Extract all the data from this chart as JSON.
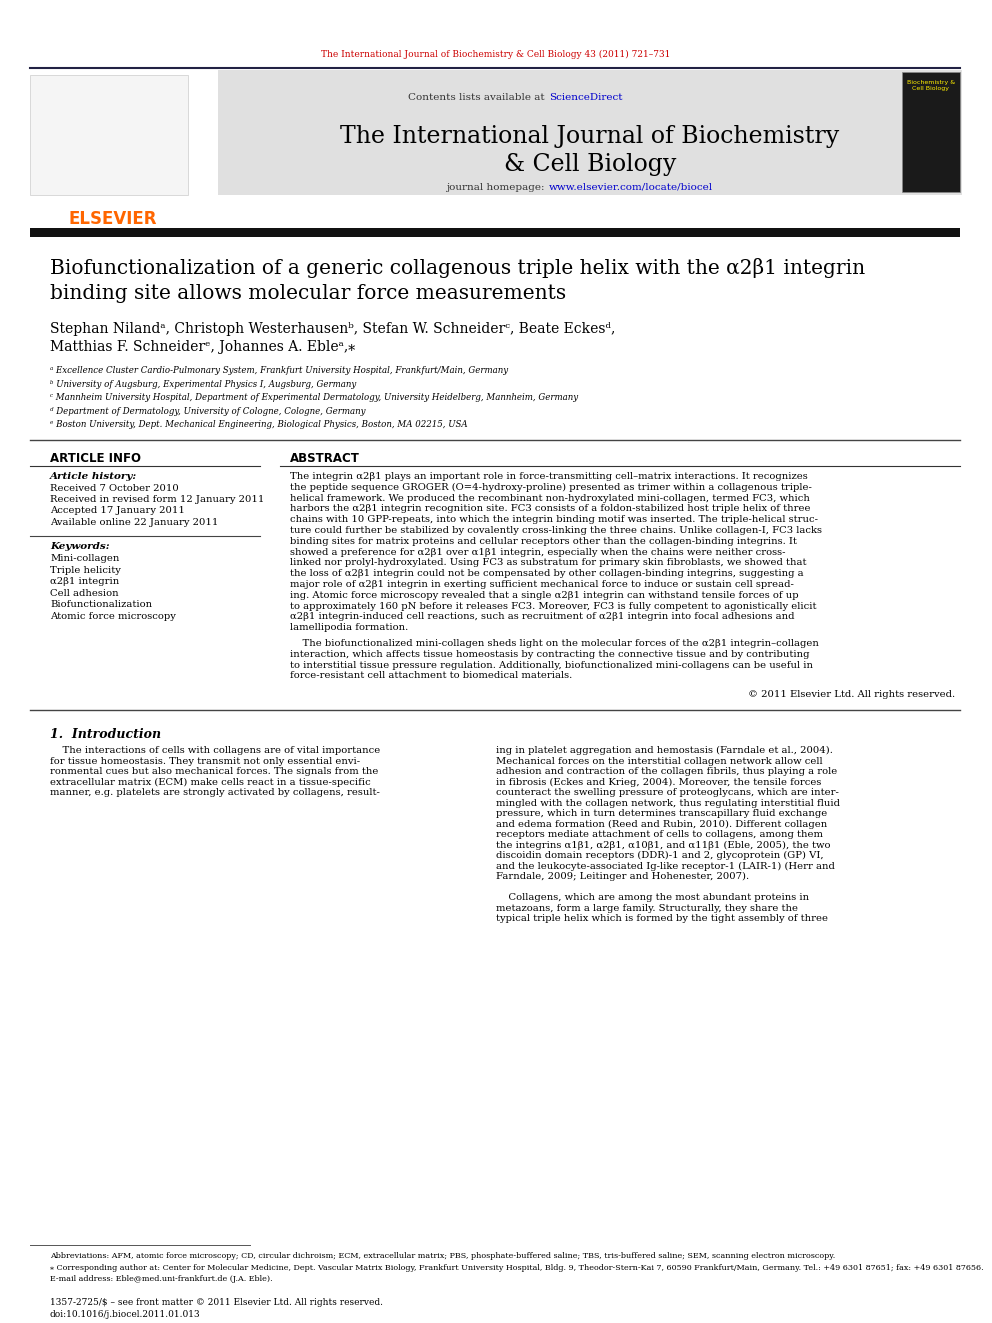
{
  "page_bg": "#ffffff",
  "header_journal_text": "The International Journal of Biochemistry & Cell Biology 43 (2011) 721–731",
  "journal_title_line1": "The International Journal of Biochemistry",
  "journal_title_line2": "& Cell Biology",
  "journal_homepage_plain": "journal homepage: ",
  "journal_homepage_link": "www.elsevier.com/locate/biocel",
  "contents_lists_plain": "Contents lists available at ",
  "contents_lists_link": "ScienceDirect",
  "article_title_line1": "Biofunctionalization of a generic collagenous triple helix with the α2β1 integrin",
  "article_title_line2": "binding site allows molecular force measurements",
  "authors": "Stephan Nilandᵃ, Christoph Westerhausenᵇ, Stefan W. Schneiderᶜ, Beate Eckesᵈ,",
  "authors2": "Matthias F. Schneiderᵉ, Johannes A. Ebleᵃ,⁎",
  "affil_a": "ᵃ Excellence Cluster Cardio-Pulmonary System, Frankfurt University Hospital, Frankfurt/Main, Germany",
  "affil_b": "ᵇ University of Augsburg, Experimental Physics I, Augsburg, Germany",
  "affil_c": "ᶜ Mannheim University Hospital, Department of Experimental Dermatology, University Heidelberg, Mannheim, Germany",
  "affil_d": "ᵈ Department of Dermatology, University of Cologne, Cologne, Germany",
  "affil_e": "ᵉ Boston University, Dept. Mechanical Engineering, Biological Physics, Boston, MA 02215, USA",
  "article_info_label": "ARTICLE INFO",
  "abstract_label": "ABSTRACT",
  "article_history_label": "Article history:",
  "received": "Received 7 October 2010",
  "revised": "Received in revised form 12 January 2011",
  "accepted": "Accepted 17 January 2011",
  "available": "Available online 22 January 2011",
  "keywords_label": "Keywords:",
  "keywords": [
    "Mini-collagen",
    "Triple helicity",
    "α2β1 integrin",
    "Cell adhesion",
    "Biofunctionalization",
    "Atomic force microscopy"
  ],
  "abstract_lines": [
    "The integrin α2β1 plays an important role in force-transmitting cell–matrix interactions. It recognizes",
    "the peptide sequence GROGER (O=4-hydroxy-proline) presented as trimer within a collagenous triple-",
    "helical framework. We produced the recombinant non-hydroxylated mini-collagen, termed FC3, which",
    "harbors the α2β1 integrin recognition site. FC3 consists of a foldon-stabilized host triple helix of three",
    "chains with 10 GPP-repeats, into which the integrin binding motif was inserted. The triple-helical struc-",
    "ture could further be stabilized by covalently cross-linking the three chains. Unlike collagen-I, FC3 lacks",
    "binding sites for matrix proteins and cellular receptors other than the collagen-binding integrins. It",
    "showed a preference for α2β1 over α1β1 integrin, especially when the chains were neither cross-",
    "linked nor prolyl-hydroxylated. Using FC3 as substratum for primary skin fibroblasts, we showed that",
    "the loss of α2β1 integrin could not be compensated by other collagen-binding integrins, suggesting a",
    "major role of α2β1 integrin in exerting sufficient mechanical force to induce or sustain cell spread-",
    "ing. Atomic force microscopy revealed that a single α2β1 integrin can withstand tensile forces of up",
    "to approximately 160 pN before it releases FC3. Moreover, FC3 is fully competent to agonistically elicit",
    "α2β1 integrin-induced cell reactions, such as recruitment of α2β1 integrin into focal adhesions and",
    "lamellipodia formation."
  ],
  "abstract_lines2": [
    "    The biofunctionalized mini-collagen sheds light on the molecular forces of the α2β1 integrin–collagen",
    "interaction, which affects tissue homeostasis by contracting the connective tissue and by contributing",
    "to interstitial tissue pressure regulation. Additionally, biofunctionalized mini-collagens can be useful in",
    "force-resistant cell attachment to biomedical materials."
  ],
  "copyright": "© 2011 Elsevier Ltd. All rights reserved.",
  "section1_label": "1.  Introduction",
  "intro_left": [
    "    The interactions of cells with collagens are of vital importance",
    "for tissue homeostasis. They transmit not only essential envi-",
    "ronmental cues but also mechanical forces. The signals from the",
    "extracellular matrix (ECM) make cells react in a tissue-specific",
    "manner, e.g. platelets are strongly activated by collagens, result-"
  ],
  "intro_right": [
    "ing in platelet aggregation and hemostasis (Farndale et al., 2004).",
    "Mechanical forces on the interstitial collagen network allow cell",
    "adhesion and contraction of the collagen fibrils, thus playing a role",
    "in fibrosis (Eckes and Krieg, 2004). Moreover, the tensile forces",
    "counteract the swelling pressure of proteoglycans, which are inter-",
    "mingled with the collagen network, thus regulating interstitial fluid",
    "pressure, which in turn determines transcapillary fluid exchange",
    "and edema formation (Reed and Rubin, 2010). Different collagen",
    "receptors mediate attachment of cells to collagens, among them",
    "the integrins α1β1, α2β1, α10β1, and α11β1 (Eble, 2005), the two",
    "discoidin domain receptors (DDR)-1 and 2, glycoprotein (GP) VI,",
    "and the leukocyte-associated Ig-like receptor-1 (LAIR-1) (Herr and",
    "Farndale, 2009; Leitinger and Hohenester, 2007)."
  ],
  "intro_right2": [
    "    Collagens, which are among the most abundant proteins in",
    "metazoans, form a large family. Structurally, they share the",
    "typical triple helix which is formed by the tight assembly of three"
  ],
  "footnote_abbrev": "Abbreviations: AFM, atomic force microscopy; CD, circular dichroism; ECM, extracellular matrix; PBS, phosphate-buffered saline; TBS, tris-buffered saline; SEM, scanning electron microscopy.",
  "footnote_corresponding": "⁎ Corresponding author at: Center for Molecular Medicine, Dept. Vascular Matrix Biology, Frankfurt University Hospital, Bldg. 9, Theodor-Stern-Kai 7, 60590 Frankfurt/Main, Germany. Tel.: +49 6301 87651; fax: +49 6301 87656.",
  "footnote_email": "E-mail address: Eble@med.uni-frankfurt.de (J.A. Eble).",
  "footer_issn": "1357-2725/$ – see front matter © 2011 Elsevier Ltd. All rights reserved.",
  "footer_doi": "doi:10.1016/j.biocel.2011.01.013",
  "link_color": "#0000cc",
  "elsevier_orange": "#ff6600",
  "header_link_color": "#cc0000"
}
